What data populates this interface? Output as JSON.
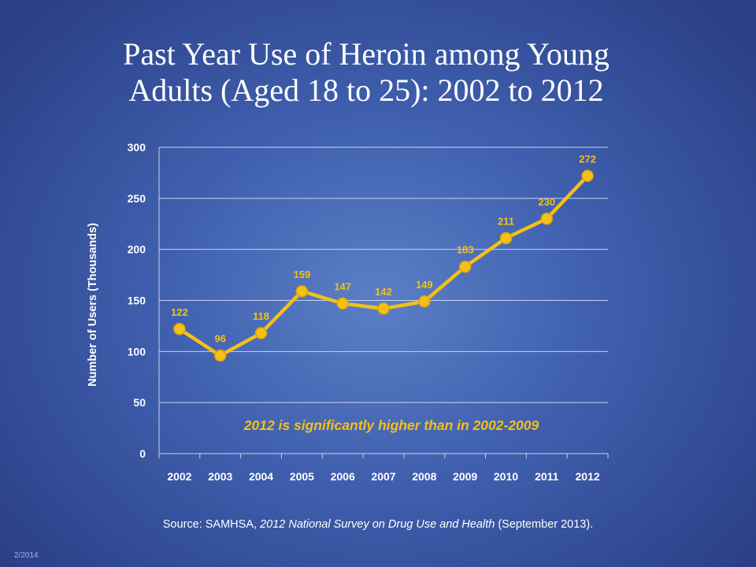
{
  "slide": {
    "title_line1": "Past Year Use of Heroin among Young",
    "title_line2": "Adults (Aged 18 to 25):  2002 to 2012",
    "source_prefix": "Source:  SAMHSA, ",
    "source_italic": "2012 National Survey on Drug Use and Health",
    "source_suffix": " (September 2013).",
    "footer_date": "2/2014"
  },
  "colors": {
    "line": "#f5c017",
    "marker_fill": "#f5c017",
    "marker_stroke": "#e0a600",
    "label": "#f5c017",
    "annotation": "#f5c017",
    "axis_text": "#ffffff",
    "grid": "#c9d3ee"
  },
  "chart_data": {
    "type": "line",
    "title": "Past Year Use of Heroin among Young Adults (Aged 18 to 25):  2002 to 2012",
    "xlabel": "",
    "ylabel": "Number of Users (Thousands)",
    "categories": [
      "2002",
      "2003",
      "2004",
      "2005",
      "2006",
      "2007",
      "2008",
      "2009",
      "2010",
      "2011",
      "2012"
    ],
    "values": [
      122,
      96,
      118,
      159,
      147,
      142,
      149,
      183,
      211,
      230,
      272
    ],
    "ylim": [
      0,
      300
    ],
    "yticks": [
      0,
      50,
      100,
      150,
      200,
      250,
      300
    ],
    "grid": true,
    "legend": "none",
    "annotation": "2012 is significantly higher than in 2002-2009"
  }
}
